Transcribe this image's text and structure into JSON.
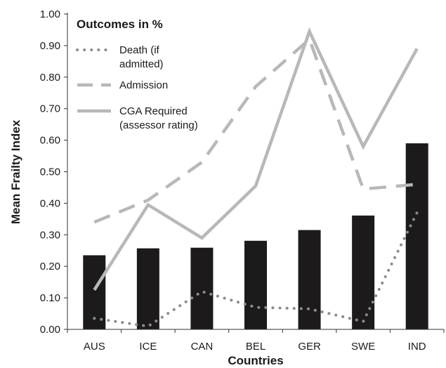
{
  "chart_data": {
    "type": "bar",
    "title": "",
    "xlabel": "Countries",
    "ylabel": "Mean Frailty Index",
    "ylim": [
      0,
      1.0
    ],
    "yticks": [
      "0.00",
      "0.10",
      "0.20",
      "0.30",
      "0.40",
      "0.50",
      "0.60",
      "0.70",
      "0.80",
      "0.90",
      "1.00"
    ],
    "categories": [
      "AUS",
      "ICE",
      "CAN",
      "BEL",
      "GER",
      "SWE",
      "IND"
    ],
    "values": [
      0.235,
      0.257,
      0.259,
      0.281,
      0.315,
      0.361,
      0.59
    ],
    "bar_color": "#1c1a1a",
    "grid": false,
    "legend": {
      "title": "Outcomes in %",
      "placement": "top-left",
      "entries": [
        {
          "series": "death",
          "lines": [
            "Death (if",
            "admitted)"
          ]
        },
        {
          "series": "admission",
          "lines": [
            "Admission"
          ]
        },
        {
          "series": "cga",
          "lines": [
            "CGA Required",
            "(assessor rating)"
          ]
        }
      ]
    },
    "series": [
      {
        "key": "death",
        "type": "line",
        "style": "dotted",
        "color": "#8c8c8c",
        "values": [
          0.035,
          0.01,
          0.12,
          0.07,
          0.065,
          0.025,
          0.37
        ]
      },
      {
        "key": "admission",
        "type": "line",
        "style": "dashed",
        "color": "#b8b8b8",
        "values": [
          0.34,
          0.41,
          0.53,
          0.77,
          0.92,
          0.445,
          0.46
        ]
      },
      {
        "key": "cga",
        "type": "line",
        "style": "solid",
        "color": "#b8b8b8",
        "values": [
          0.125,
          0.395,
          0.29,
          0.455,
          0.945,
          0.58,
          0.89
        ]
      }
    ]
  }
}
